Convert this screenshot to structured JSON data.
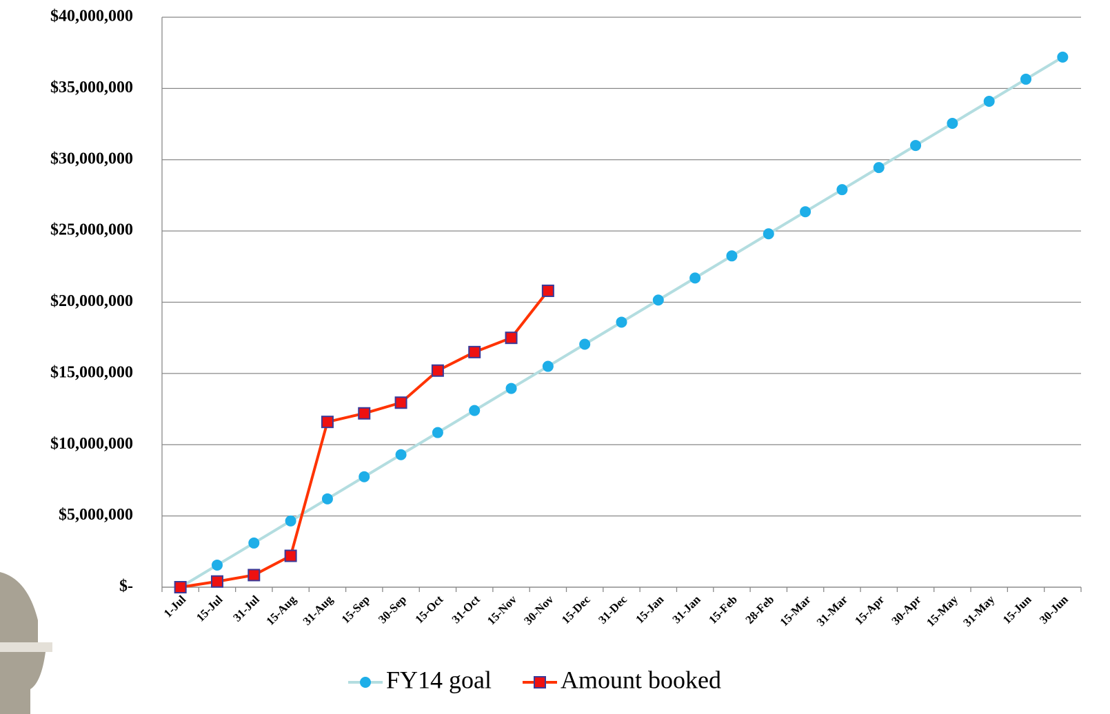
{
  "chart_data": {
    "type": "line",
    "categories": [
      "1-Jul",
      "15-Jul",
      "31-Jul",
      "15-Aug",
      "31-Aug",
      "15-Sep",
      "30-Sep",
      "15-Oct",
      "31-Oct",
      "15-Nov",
      "30-Nov",
      "15-Dec",
      "31-Dec",
      "15-Jan",
      "31-Jan",
      "15-Feb",
      "28-Feb",
      "15-Mar",
      "31-Mar",
      "15-Apr",
      "30-Apr",
      "15-May",
      "31-May",
      "15-Jun",
      "30-Jun"
    ],
    "series": [
      {
        "name": "FY14 goal",
        "color": "#b3dde0",
        "marker": "circle",
        "marker_color": "#1eaee8",
        "values": [
          0,
          1550000,
          3100000,
          4650000,
          6200000,
          7750000,
          9300000,
          10850000,
          12400000,
          13950000,
          15500000,
          17050000,
          18600000,
          20150000,
          21700000,
          23250000,
          24800000,
          26350000,
          27900000,
          29450000,
          31000000,
          32550000,
          34100000,
          35650000,
          37200000
        ]
      },
      {
        "name": "Amount booked",
        "color": "#ff3300",
        "marker": "square",
        "marker_color": "#ee1111",
        "values": [
          0,
          400000,
          850000,
          2200000,
          11600000,
          12200000,
          12950000,
          15200000,
          16500000,
          17500000,
          20800000,
          null,
          null,
          null,
          null,
          null,
          null,
          null,
          null,
          null,
          null,
          null,
          null,
          null,
          null
        ]
      }
    ],
    "ylim": [
      0,
      40000000
    ],
    "yticks": [
      {
        "value": 0,
        "label": "$-"
      },
      {
        "value": 5000000,
        "label": "$5,000,000"
      },
      {
        "value": 10000000,
        "label": "$10,000,000"
      },
      {
        "value": 15000000,
        "label": "$15,000,000"
      },
      {
        "value": 20000000,
        "label": "$20,000,000"
      },
      {
        "value": 25000000,
        "label": "$25,000,000"
      },
      {
        "value": 30000000,
        "label": "$30,000,000"
      },
      {
        "value": 35000000,
        "label": "$35,000,000"
      },
      {
        "value": 40000000,
        "label": "$40,000,000"
      }
    ],
    "grid": true,
    "legend": "bottom"
  }
}
